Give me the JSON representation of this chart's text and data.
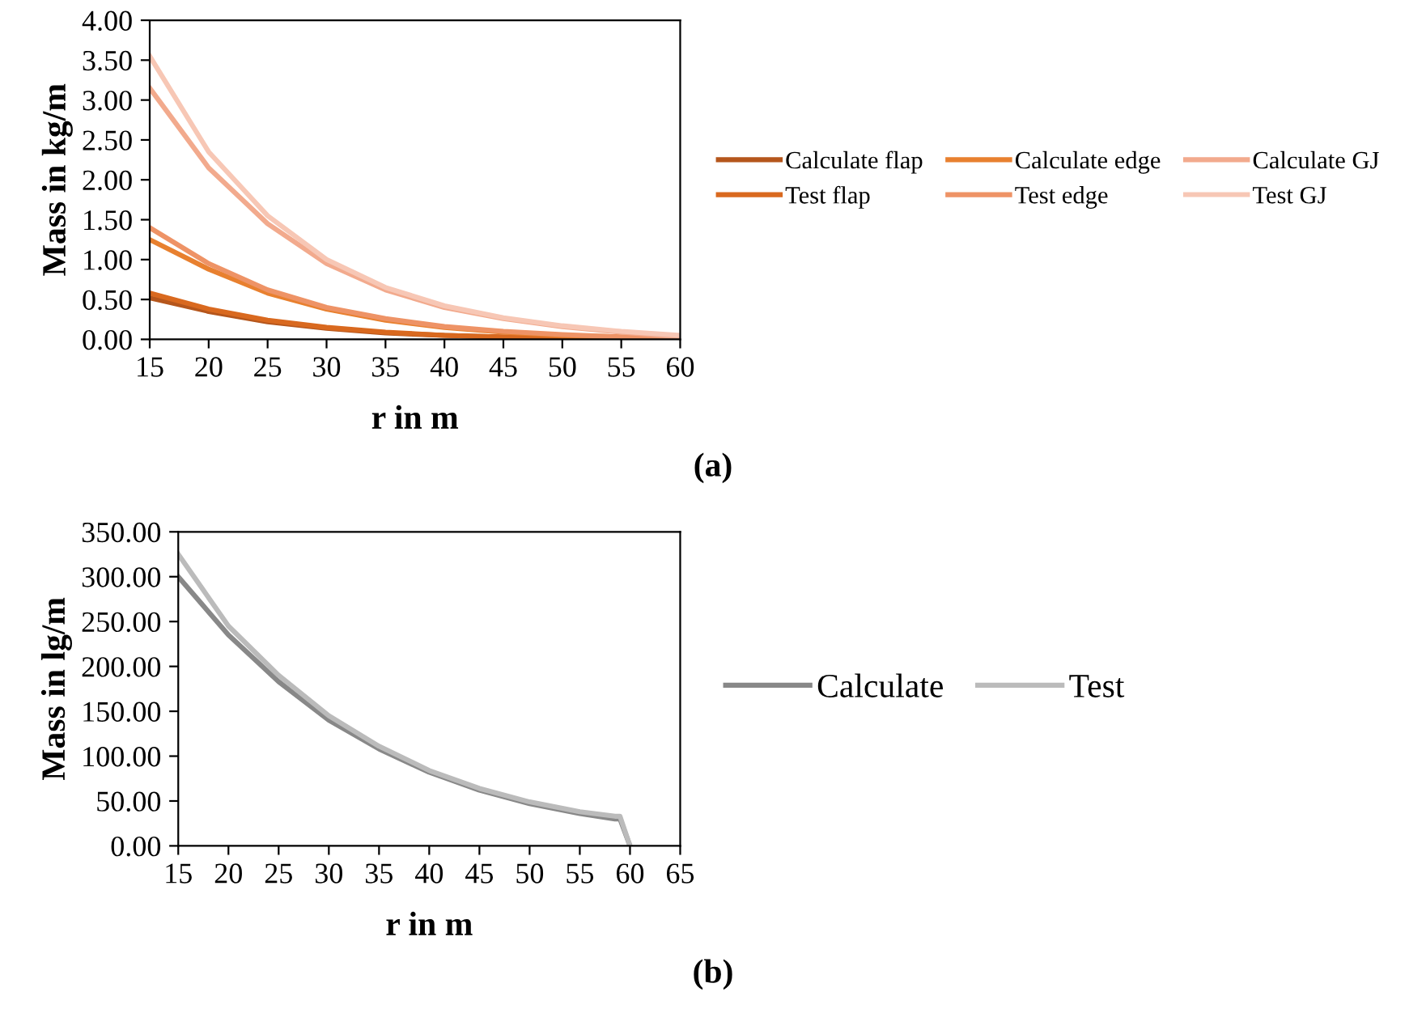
{
  "chart_data": [
    {
      "type": "line",
      "xlabel": "r in m",
      "ylabel": "Mass in kg/m",
      "annotations": [
        "(a)"
      ],
      "xlim": [
        15,
        60
      ],
      "xticks": [
        15,
        20,
        25,
        30,
        35,
        40,
        45,
        50,
        55,
        60
      ],
      "ylim": [
        0,
        4
      ],
      "yticks": [
        {
          "value": 0,
          "label": "0.00"
        },
        {
          "value": 0.5,
          "label": "0.50"
        },
        {
          "value": 1,
          "label": "1.00"
        },
        {
          "value": 1.5,
          "label": "1.50"
        },
        {
          "value": 2,
          "label": "2.00"
        },
        {
          "value": 2.5,
          "label": "2.50"
        },
        {
          "value": 3,
          "label": "3.00"
        },
        {
          "value": 3.5,
          "label": "3.50"
        },
        {
          "value": 4,
          "label": "4.00"
        }
      ],
      "grid": false,
      "legend": "right",
      "marker": "none",
      "line_style": "solid",
      "x": [
        15,
        20,
        25,
        30,
        35,
        40,
        45,
        50,
        55,
        60
      ],
      "series": [
        {
          "name": "Calculate flap",
          "color": "#b5561c",
          "values": [
            0.52,
            0.35,
            0.22,
            0.14,
            0.08,
            0.05,
            0.03,
            0.02,
            0.01,
            0.0
          ]
        },
        {
          "name": "Test flap",
          "color": "#d9691f",
          "values": [
            0.58,
            0.38,
            0.24,
            0.15,
            0.09,
            0.05,
            0.03,
            0.02,
            0.01,
            0.0
          ]
        },
        {
          "name": "Calculate edge",
          "color": "#e8802f",
          "values": [
            1.25,
            0.88,
            0.58,
            0.38,
            0.24,
            0.15,
            0.09,
            0.05,
            0.03,
            0.01
          ]
        },
        {
          "name": "Test edge",
          "color": "#ee9366",
          "values": [
            1.4,
            0.95,
            0.62,
            0.4,
            0.26,
            0.16,
            0.1,
            0.06,
            0.03,
            0.01
          ]
        },
        {
          "name": "Calculate GJ",
          "color": "#f2aa8d",
          "values": [
            3.15,
            2.15,
            1.45,
            0.95,
            0.62,
            0.4,
            0.26,
            0.16,
            0.09,
            0.03
          ]
        },
        {
          "name": "Test GJ",
          "color": "#f7c7b5",
          "values": [
            3.55,
            2.35,
            1.55,
            1.0,
            0.65,
            0.42,
            0.27,
            0.17,
            0.1,
            0.05
          ]
        }
      ]
    },
    {
      "type": "line",
      "xlabel": "r in m",
      "ylabel": "Mass in lg/m",
      "annotations": [
        "(b)"
      ],
      "xlim": [
        15,
        65
      ],
      "xticks": [
        15,
        20,
        25,
        30,
        35,
        40,
        45,
        50,
        55,
        60,
        65
      ],
      "ylim": [
        0,
        350
      ],
      "yticks": [
        {
          "value": 0,
          "label": "0.00"
        },
        {
          "value": 50,
          "label": "50.00"
        },
        {
          "value": 100,
          "label": "100.00"
        },
        {
          "value": 150,
          "label": "150.00"
        },
        {
          "value": 200,
          "label": "200.00"
        },
        {
          "value": 250,
          "label": "250.00"
        },
        {
          "value": 300,
          "label": "300.00"
        },
        {
          "value": 350,
          "label": "350.00"
        }
      ],
      "grid": false,
      "legend": "right",
      "marker": "none",
      "line_style": "solid",
      "x": [
        15,
        20,
        25,
        30,
        35,
        40,
        45,
        50,
        55,
        58.5,
        59,
        60
      ],
      "series": [
        {
          "name": "Calculate",
          "color": "#888888",
          "values": [
            300,
            235,
            183,
            140,
            108,
            82,
            62,
            47,
            36,
            30,
            30,
            0
          ]
        },
        {
          "name": "Test",
          "color": "#bbbbbb",
          "values": [
            325,
            245,
            190,
            145,
            111,
            84,
            64,
            49,
            38,
            33,
            33,
            0
          ]
        }
      ]
    }
  ]
}
